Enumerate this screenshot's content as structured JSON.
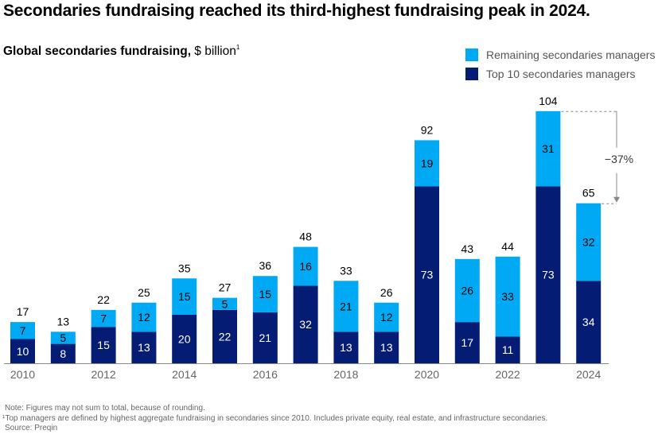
{
  "title": "Secondaries fundraising reached its third-highest fundraising peak in 2024.",
  "subtitle": {
    "bold": "Global secondaries fundraising,",
    "unit": " $ billion",
    "footnote_mark": "1"
  },
  "colors": {
    "remaining": "#00A9F4",
    "top10": "#051C75",
    "axis": "#888888",
    "annotation": "#888888"
  },
  "chart_data": {
    "type": "bar",
    "stacked": true,
    "title": "Global secondaries fundraising, $ billion",
    "xlabel": "",
    "ylabel": "$ billion",
    "categories": [
      "2010",
      "2011",
      "2012",
      "2013",
      "2014",
      "2015",
      "2016",
      "2017",
      "2018",
      "2019",
      "2020",
      "2021",
      "2022",
      "2023",
      "2024"
    ],
    "tick_labels": [
      "2010",
      "",
      "2012",
      "",
      "2014",
      "",
      "2016",
      "",
      "2018",
      "",
      "2020",
      "",
      "2022",
      "",
      "2024"
    ],
    "series": [
      {
        "name": "Top 10 secondaries managers",
        "values": [
          10,
          8,
          15,
          13,
          20,
          22,
          21,
          32,
          13,
          13,
          73,
          17,
          11,
          73,
          34
        ]
      },
      {
        "name": "Remaining secondaries managers",
        "values": [
          7,
          5,
          7,
          12,
          15,
          5,
          15,
          16,
          21,
          12,
          19,
          26,
          33,
          31,
          32
        ]
      }
    ],
    "totals": [
      17,
      13,
      22,
      25,
      35,
      27,
      36,
      48,
      33,
      26,
      92,
      43,
      44,
      104,
      65
    ],
    "ylim": [
      0,
      104
    ],
    "grid": false,
    "legend": {
      "position": "top-right",
      "entries": [
        "Remaining secondaries managers",
        "Top 10 secondaries managers"
      ]
    },
    "annotation": {
      "label": "−37%",
      "from": "2023",
      "to": "2024"
    }
  },
  "notes": [
    "Note: Figures may not sum to total, because of rounding.",
    "¹Top managers are defined by highest aggregate fundraising in secondaries since 2010. Includes private equity, real estate, and infrastructure secondaries.",
    "Source: Preqin"
  ]
}
